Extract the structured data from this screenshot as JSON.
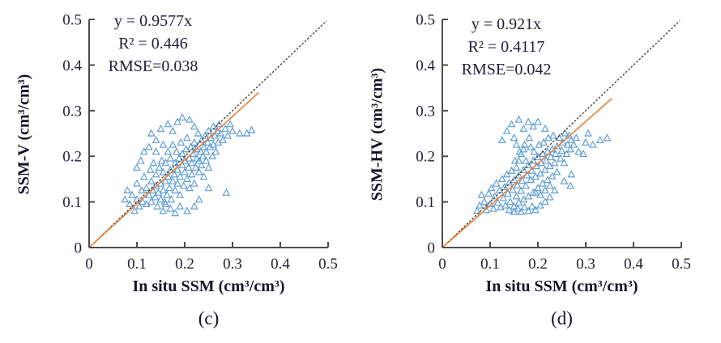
{
  "figure": {
    "background": "#ffffff"
  },
  "chart_data": [
    {
      "type": "scatter",
      "panel_label": "(c)",
      "xlabel": "In situ SSM (cm³/cm³)",
      "ylabel": "SSM-V (cm³/cm³)",
      "xlim": [
        0,
        0.5
      ],
      "ylim": [
        0,
        0.5
      ],
      "grid": false,
      "xticks": [
        0,
        0.1,
        0.2,
        0.3,
        0.4,
        0.5
      ],
      "yticks": [
        0,
        0.1,
        0.2,
        0.3,
        0.4,
        0.5
      ],
      "xtick_labels": [
        "0",
        "0.1",
        "0.2",
        "0.3",
        "0.4",
        "0.5"
      ],
      "ytick_labels": [
        "0",
        "0.1",
        "0.2",
        "0.3",
        "0.4",
        "0.5"
      ],
      "annotation": {
        "equation": "y = 0.9577x",
        "r_squared": "R² = 0.446",
        "rmse": "RMSE=0.038"
      },
      "trendline": {
        "slope": 0.9577,
        "intercept": 0,
        "x_end": 0.355,
        "color": "#ED7D31"
      },
      "identity_line": {
        "style": "dotted",
        "color": "#3a3a3a",
        "from": [
          0,
          0
        ],
        "to": [
          0.497,
          0.497
        ]
      },
      "marker": {
        "shape": "open-triangle",
        "color": "#5B9BD5"
      },
      "points": [
        [
          0.085,
          0.095
        ],
        [
          0.09,
          0.115
        ],
        [
          0.095,
          0.08
        ],
        [
          0.1,
          0.105
        ],
        [
          0.1,
          0.14
        ],
        [
          0.105,
          0.09
        ],
        [
          0.11,
          0.125
        ],
        [
          0.112,
          0.1
        ],
        [
          0.115,
          0.155
        ],
        [
          0.12,
          0.095
        ],
        [
          0.12,
          0.13
        ],
        [
          0.125,
          0.115
        ],
        [
          0.128,
          0.17
        ],
        [
          0.13,
          0.1
        ],
        [
          0.13,
          0.145
        ],
        [
          0.133,
          0.125
        ],
        [
          0.135,
          0.185
        ],
        [
          0.138,
          0.11
        ],
        [
          0.14,
          0.135
        ],
        [
          0.14,
          0.16
        ],
        [
          0.143,
          0.09
        ],
        [
          0.145,
          0.12
        ],
        [
          0.147,
          0.175
        ],
        [
          0.15,
          0.105
        ],
        [
          0.15,
          0.14
        ],
        [
          0.152,
          0.19
        ],
        [
          0.155,
          0.125
        ],
        [
          0.155,
          0.165
        ],
        [
          0.158,
          0.1
        ],
        [
          0.16,
          0.145
        ],
        [
          0.16,
          0.185
        ],
        [
          0.163,
          0.115
        ],
        [
          0.165,
          0.155
        ],
        [
          0.165,
          0.21
        ],
        [
          0.168,
          0.13
        ],
        [
          0.17,
          0.17
        ],
        [
          0.17,
          0.195
        ],
        [
          0.172,
          0.105
        ],
        [
          0.175,
          0.145
        ],
        [
          0.175,
          0.225
        ],
        [
          0.178,
          0.16
        ],
        [
          0.18,
          0.125
        ],
        [
          0.18,
          0.185
        ],
        [
          0.183,
          0.21
        ],
        [
          0.185,
          0.14
        ],
        [
          0.185,
          0.17
        ],
        [
          0.188,
          0.195
        ],
        [
          0.19,
          0.115
        ],
        [
          0.19,
          0.155
        ],
        [
          0.192,
          0.23
        ],
        [
          0.195,
          0.18
        ],
        [
          0.195,
          0.205
        ],
        [
          0.198,
          0.135
        ],
        [
          0.2,
          0.165
        ],
        [
          0.2,
          0.19
        ],
        [
          0.203,
          0.215
        ],
        [
          0.205,
          0.15
        ],
        [
          0.205,
          0.24
        ],
        [
          0.208,
          0.175
        ],
        [
          0.21,
          0.195
        ],
        [
          0.21,
          0.13
        ],
        [
          0.213,
          0.22
        ],
        [
          0.215,
          0.16
        ],
        [
          0.215,
          0.185
        ],
        [
          0.218,
          0.205
        ],
        [
          0.22,
          0.14
        ],
        [
          0.22,
          0.23
        ],
        [
          0.223,
          0.175
        ],
        [
          0.225,
          0.195
        ],
        [
          0.225,
          0.215
        ],
        [
          0.228,
          0.25
        ],
        [
          0.23,
          0.165
        ],
        [
          0.23,
          0.19
        ],
        [
          0.233,
          0.21
        ],
        [
          0.235,
          0.18
        ],
        [
          0.235,
          0.235
        ],
        [
          0.238,
          0.2
        ],
        [
          0.24,
          0.155
        ],
        [
          0.24,
          0.22
        ],
        [
          0.243,
          0.245
        ],
        [
          0.245,
          0.19
        ],
        [
          0.245,
          0.21
        ],
        [
          0.248,
          0.23
        ],
        [
          0.25,
          0.175
        ],
        [
          0.25,
          0.255
        ],
        [
          0.253,
          0.22
        ],
        [
          0.255,
          0.24
        ],
        [
          0.258,
          0.2
        ],
        [
          0.26,
          0.225
        ],
        [
          0.26,
          0.265
        ],
        [
          0.263,
          0.245
        ],
        [
          0.265,
          0.21
        ],
        [
          0.268,
          0.255
        ],
        [
          0.27,
          0.23
        ],
        [
          0.272,
          0.27
        ],
        [
          0.275,
          0.25
        ],
        [
          0.28,
          0.235
        ],
        [
          0.285,
          0.26
        ],
        [
          0.29,
          0.245
        ],
        [
          0.13,
          0.25
        ],
        [
          0.14,
          0.235
        ],
        [
          0.15,
          0.26
        ],
        [
          0.155,
          0.225
        ],
        [
          0.165,
          0.27
        ],
        [
          0.175,
          0.255
        ],
        [
          0.185,
          0.275
        ],
        [
          0.195,
          0.285
        ],
        [
          0.21,
          0.28
        ],
        [
          0.22,
          0.265
        ],
        [
          0.14,
          0.21
        ],
        [
          0.125,
          0.22
        ],
        [
          0.155,
          0.08
        ],
        [
          0.17,
          0.085
        ],
        [
          0.18,
          0.075
        ],
        [
          0.19,
          0.09
        ],
        [
          0.205,
          0.08
        ],
        [
          0.22,
          0.09
        ],
        [
          0.16,
          0.095
        ],
        [
          0.23,
          0.105
        ],
        [
          0.25,
          0.13
        ],
        [
          0.287,
          0.12
        ],
        [
          0.3,
          0.255
        ],
        [
          0.315,
          0.25
        ],
        [
          0.33,
          0.25
        ],
        [
          0.34,
          0.257
        ],
        [
          0.295,
          0.27
        ],
        [
          0.075,
          0.105
        ],
        [
          0.08,
          0.125
        ],
        [
          0.108,
          0.19
        ],
        [
          0.115,
          0.21
        ],
        [
          0.1,
          0.175
        ]
      ]
    },
    {
      "type": "scatter",
      "panel_label": "(d)",
      "xlabel": "In situ SSM (cm³/cm³)",
      "ylabel": "SSM-HV (cm³/cm³)",
      "xlim": [
        0,
        0.5
      ],
      "ylim": [
        0,
        0.5
      ],
      "grid": false,
      "xticks": [
        0,
        0.1,
        0.2,
        0.3,
        0.4,
        0.5
      ],
      "yticks": [
        0,
        0.1,
        0.2,
        0.3,
        0.4,
        0.5
      ],
      "xtick_labels": [
        "0",
        "0.1",
        "0.2",
        "0.3",
        "0.4",
        "0.5"
      ],
      "ytick_labels": [
        "0",
        "0.1",
        "0.2",
        "0.3",
        "0.4",
        "0.5"
      ],
      "annotation": {
        "equation": "y = 0.921x",
        "r_squared": "R² = 0.4117",
        "rmse": "RMSE=0.042"
      },
      "trendline": {
        "slope": 0.921,
        "intercept": 0,
        "x_end": 0.355,
        "color": "#ED7D31"
      },
      "identity_line": {
        "style": "dotted",
        "color": "#3a3a3a",
        "from": [
          0,
          0
        ],
        "to": [
          0.497,
          0.497
        ]
      },
      "marker": {
        "shape": "open-triangle",
        "color": "#5B9BD5"
      },
      "points": [
        [
          0.088,
          0.1
        ],
        [
          0.092,
          0.082
        ],
        [
          0.097,
          0.118
        ],
        [
          0.1,
          0.095
        ],
        [
          0.103,
          0.13
        ],
        [
          0.107,
          0.085
        ],
        [
          0.11,
          0.112
        ],
        [
          0.113,
          0.14
        ],
        [
          0.116,
          0.098
        ],
        [
          0.12,
          0.125
        ],
        [
          0.122,
          0.088
        ],
        [
          0.125,
          0.15
        ],
        [
          0.128,
          0.108
        ],
        [
          0.13,
          0.132
        ],
        [
          0.132,
          0.092
        ],
        [
          0.135,
          0.16
        ],
        [
          0.137,
          0.118
        ],
        [
          0.14,
          0.142
        ],
        [
          0.142,
          0.1
        ],
        [
          0.145,
          0.168
        ],
        [
          0.147,
          0.126
        ],
        [
          0.15,
          0.148
        ],
        [
          0.15,
          0.09
        ],
        [
          0.152,
          0.19
        ],
        [
          0.155,
          0.112
        ],
        [
          0.157,
          0.136
        ],
        [
          0.16,
          0.158
        ],
        [
          0.16,
          0.098
        ],
        [
          0.162,
          0.21
        ],
        [
          0.165,
          0.124
        ],
        [
          0.167,
          0.146
        ],
        [
          0.17,
          0.17
        ],
        [
          0.17,
          0.105
        ],
        [
          0.172,
          0.225
        ],
        [
          0.175,
          0.135
        ],
        [
          0.177,
          0.158
        ],
        [
          0.18,
          0.18
        ],
        [
          0.18,
          0.112
        ],
        [
          0.182,
          0.24
        ],
        [
          0.185,
          0.148
        ],
        [
          0.187,
          0.168
        ],
        [
          0.19,
          0.19
        ],
        [
          0.19,
          0.12
        ],
        [
          0.192,
          0.21
        ],
        [
          0.195,
          0.155
        ],
        [
          0.197,
          0.178
        ],
        [
          0.2,
          0.198
        ],
        [
          0.2,
          0.13
        ],
        [
          0.202,
          0.225
        ],
        [
          0.205,
          0.162
        ],
        [
          0.207,
          0.185
        ],
        [
          0.21,
          0.205
        ],
        [
          0.21,
          0.14
        ],
        [
          0.212,
          0.23
        ],
        [
          0.215,
          0.17
        ],
        [
          0.217,
          0.19
        ],
        [
          0.22,
          0.21
        ],
        [
          0.22,
          0.148
        ],
        [
          0.222,
          0.24
        ],
        [
          0.225,
          0.178
        ],
        [
          0.227,
          0.198
        ],
        [
          0.23,
          0.215
        ],
        [
          0.23,
          0.156
        ],
        [
          0.232,
          0.245
        ],
        [
          0.235,
          0.185
        ],
        [
          0.237,
          0.205
        ],
        [
          0.24,
          0.222
        ],
        [
          0.24,
          0.165
        ],
        [
          0.245,
          0.24
        ],
        [
          0.247,
          0.195
        ],
        [
          0.25,
          0.212
        ],
        [
          0.252,
          0.23
        ],
        [
          0.255,
          0.185
        ],
        [
          0.257,
          0.25
        ],
        [
          0.26,
          0.205
        ],
        [
          0.262,
          0.225
        ],
        [
          0.265,
          0.245
        ],
        [
          0.268,
          0.215
        ],
        [
          0.27,
          0.235
        ],
        [
          0.275,
          0.225
        ],
        [
          0.28,
          0.24
        ],
        [
          0.285,
          0.21
        ],
        [
          0.195,
          0.12
        ],
        [
          0.205,
          0.115
        ],
        [
          0.215,
          0.125
        ],
        [
          0.225,
          0.135
        ],
        [
          0.16,
          0.19
        ],
        [
          0.165,
          0.205
        ],
        [
          0.155,
          0.175
        ],
        [
          0.17,
          0.215
        ],
        [
          0.175,
          0.19
        ],
        [
          0.185,
          0.22
        ],
        [
          0.14,
          0.082
        ],
        [
          0.15,
          0.078
        ],
        [
          0.158,
          0.085
        ],
        [
          0.165,
          0.078
        ],
        [
          0.172,
          0.088
        ],
        [
          0.18,
          0.08
        ],
        [
          0.188,
          0.09
        ],
        [
          0.195,
          0.082
        ],
        [
          0.205,
          0.092
        ],
        [
          0.215,
          0.1
        ],
        [
          0.225,
          0.11
        ],
        [
          0.235,
          0.125
        ],
        [
          0.125,
          0.235
        ],
        [
          0.135,
          0.255
        ],
        [
          0.145,
          0.27
        ],
        [
          0.15,
          0.24
        ],
        [
          0.16,
          0.28
        ],
        [
          0.17,
          0.26
        ],
        [
          0.18,
          0.275
        ],
        [
          0.19,
          0.265
        ],
        [
          0.2,
          0.275
        ],
        [
          0.215,
          0.26
        ],
        [
          0.155,
          0.225
        ],
        [
          0.3,
          0.23
        ],
        [
          0.315,
          0.225
        ],
        [
          0.33,
          0.235
        ],
        [
          0.345,
          0.24
        ],
        [
          0.295,
          0.205
        ],
        [
          0.305,
          0.25
        ],
        [
          0.078,
          0.092
        ],
        [
          0.082,
          0.115
        ],
        [
          0.073,
          0.08
        ],
        [
          0.268,
          0.135
        ],
        [
          0.255,
          0.145
        ],
        [
          0.27,
          0.16
        ]
      ]
    }
  ]
}
